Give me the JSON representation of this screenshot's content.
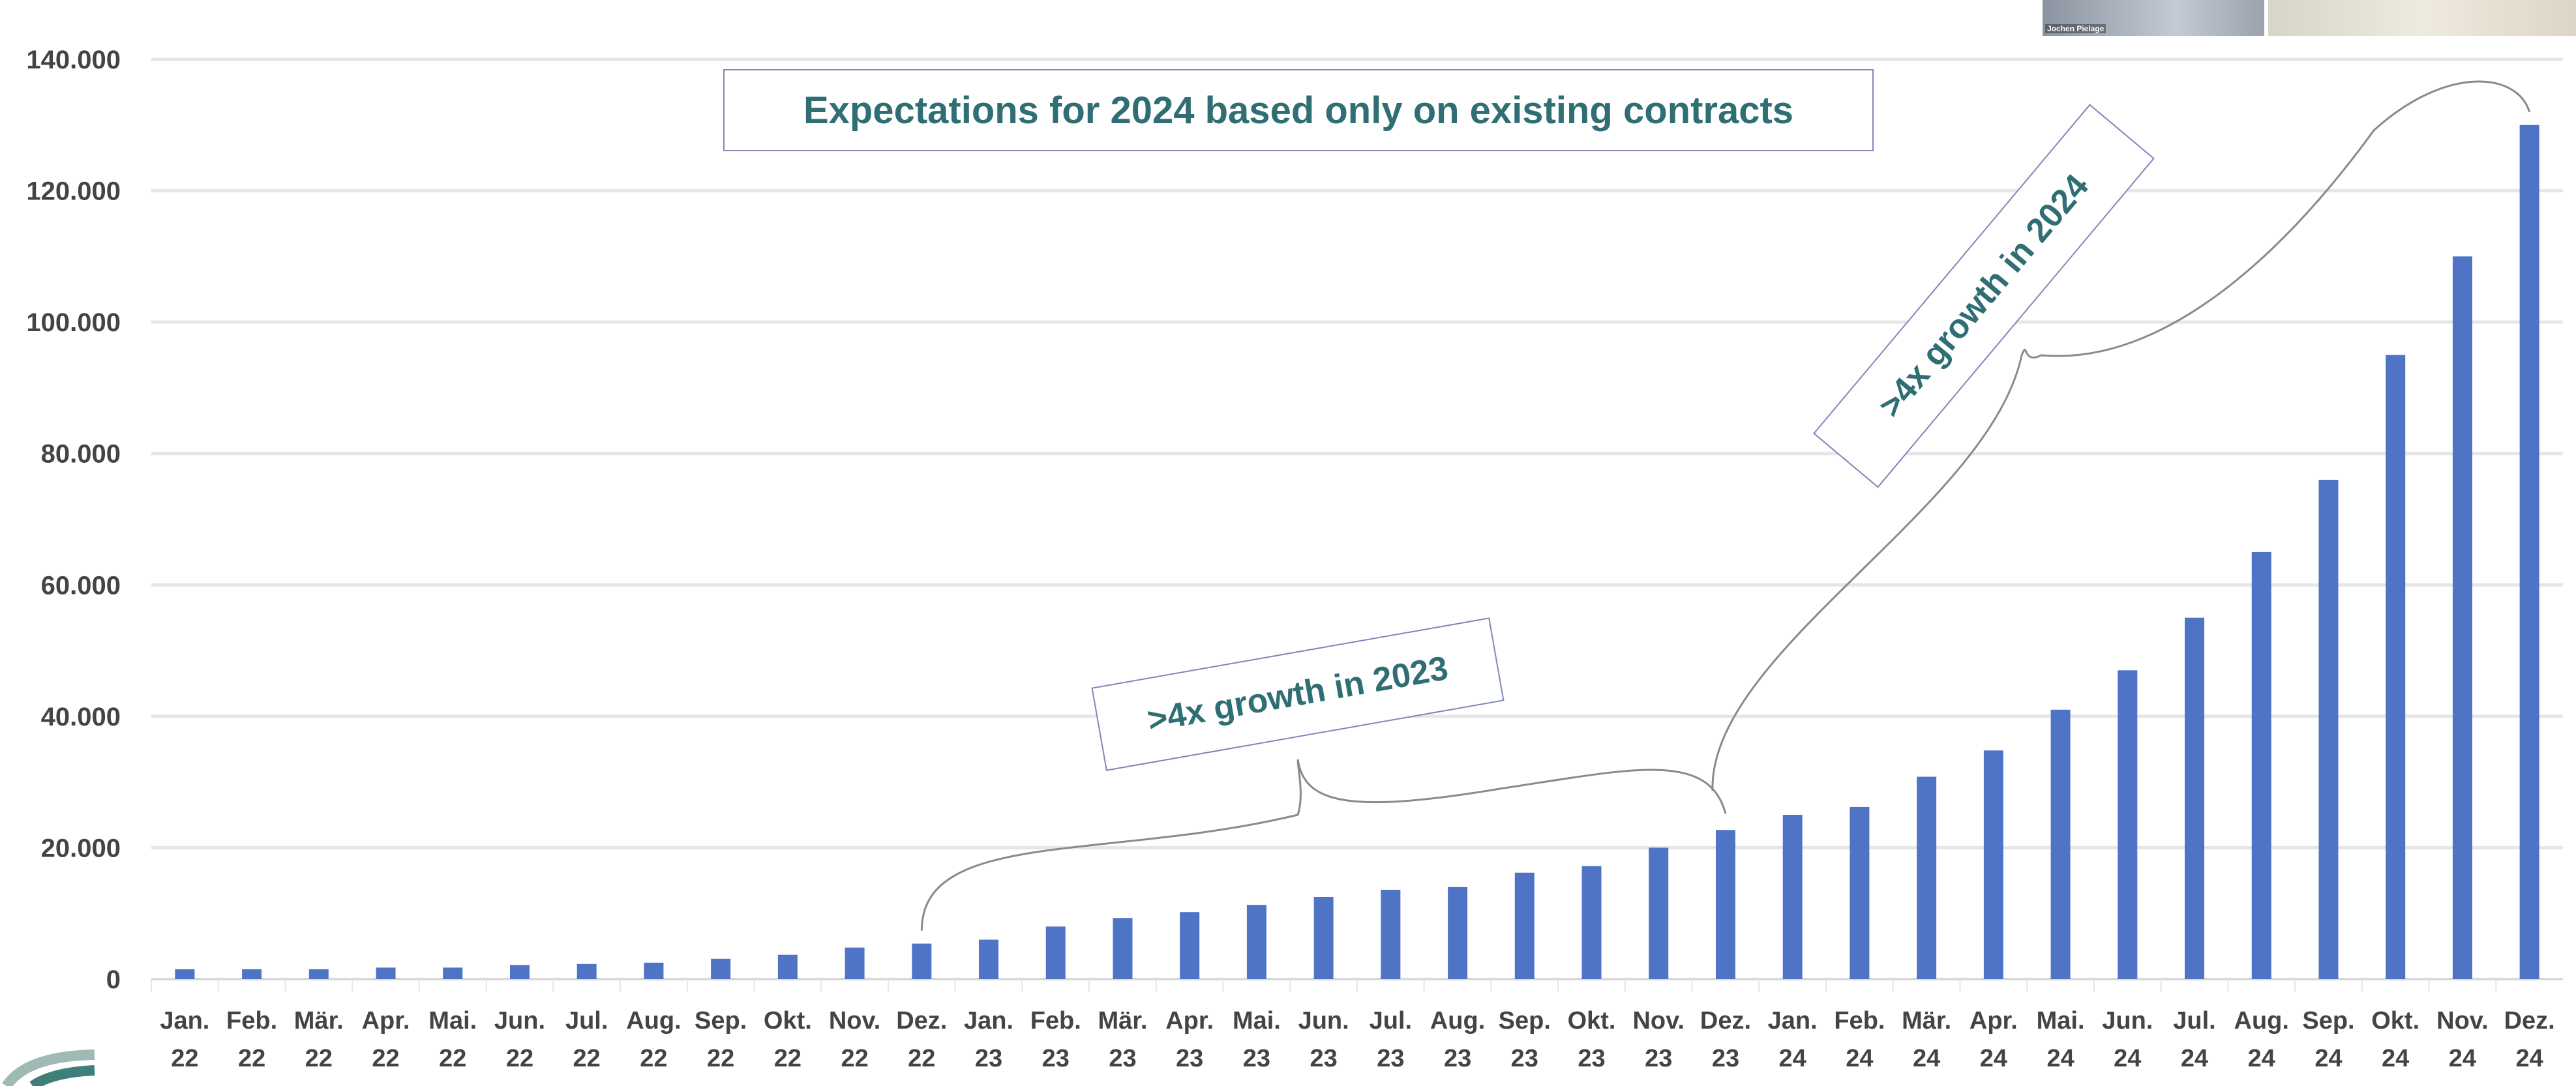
{
  "video_overlay": {
    "participant_name": "Jochen Pielage"
  },
  "colors": {
    "bar": "#4f74c6",
    "accent_text": "#2f6f73",
    "grid": "#e6e6e6",
    "box_border": "#7f86b8"
  },
  "chart_data": {
    "type": "bar",
    "title": "Expectations for 2024 based only on existing contracts",
    "xlabel": "",
    "ylabel": "",
    "ylim": [
      0,
      140000
    ],
    "yticks": [
      0,
      20000,
      40000,
      60000,
      80000,
      100000,
      120000,
      140000
    ],
    "ytick_labels": [
      "0",
      "20.000",
      "40.000",
      "60.000",
      "80.000",
      "100.000",
      "120.000",
      "140.000"
    ],
    "grid": true,
    "categories": [
      [
        "Jan.",
        "22"
      ],
      [
        "Feb.",
        "22"
      ],
      [
        "Mär.",
        "22"
      ],
      [
        "Apr.",
        "22"
      ],
      [
        "Mai.",
        "22"
      ],
      [
        "Jun.",
        "22"
      ],
      [
        "Jul.",
        "22"
      ],
      [
        "Aug.",
        "22"
      ],
      [
        "Sep.",
        "22"
      ],
      [
        "Okt.",
        "22"
      ],
      [
        "Nov.",
        "22"
      ],
      [
        "Dez.",
        "22"
      ],
      [
        "Jan.",
        "23"
      ],
      [
        "Feb.",
        "23"
      ],
      [
        "Mär.",
        "23"
      ],
      [
        "Apr.",
        "23"
      ],
      [
        "Mai.",
        "23"
      ],
      [
        "Jun.",
        "23"
      ],
      [
        "Jul.",
        "23"
      ],
      [
        "Aug.",
        "23"
      ],
      [
        "Sep.",
        "23"
      ],
      [
        "Okt.",
        "23"
      ],
      [
        "Nov.",
        "23"
      ],
      [
        "Dez.",
        "23"
      ],
      [
        "Jan.",
        "24"
      ],
      [
        "Feb.",
        "24"
      ],
      [
        "Mär.",
        "24"
      ],
      [
        "Apr.",
        "24"
      ],
      [
        "Mai.",
        "24"
      ],
      [
        "Jun.",
        "24"
      ],
      [
        "Jul.",
        "24"
      ],
      [
        "Aug.",
        "24"
      ],
      [
        "Sep.",
        "24"
      ],
      [
        "Okt.",
        "24"
      ],
      [
        "Nov.",
        "24"
      ],
      [
        "Dez.",
        "24"
      ]
    ],
    "values": [
      1500,
      1500,
      1500,
      1750,
      1750,
      2150,
      2300,
      2500,
      3100,
      3700,
      4800,
      5400,
      6000,
      8000,
      9300,
      10200,
      11300,
      12500,
      13600,
      14000,
      16200,
      17200,
      20000,
      22700,
      25000,
      26200,
      30800,
      34800,
      41000,
      47000,
      55000,
      65000,
      76000,
      95000,
      110000,
      130000
    ],
    "annotations": [
      ">4x growth in 2023",
      ">4x growth in 2024"
    ]
  }
}
